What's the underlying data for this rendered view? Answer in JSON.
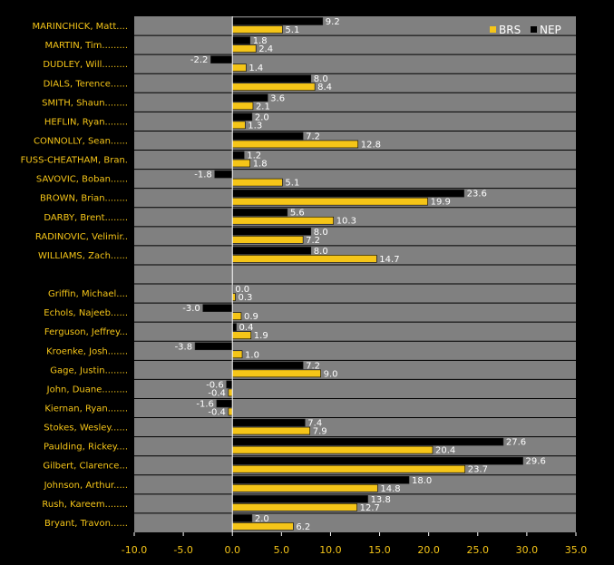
{
  "chart_data": {
    "type": "bar",
    "orientation": "horizontal",
    "categories": [
      "MARINCHICK, Matt....",
      "MARTIN, Tim.........",
      "DUDLEY, Will.........",
      "DIALS, Terence......",
      "SMITH, Shaun........",
      "HEFLIN, Ryan........",
      "CONNOLLY, Sean......",
      "FUSS-CHEATHAM, Bran.",
      "SAVOVIC, Boban......",
      "BROWN, Brian........",
      "DARBY, Brent........",
      "RADINOVIC, Velimir..",
      "WILLIAMS, Zach......",
      "",
      "Griffin, Michael....",
      "Echols, Najeeb......",
      "Ferguson, Jeffrey...",
      "Kroenke, Josh.......",
      "Gage, Justin........",
      "John, Duane.........",
      "Kiernan, Ryan.......",
      "Stokes, Wesley......",
      "Paulding, Rickey....",
      "Gilbert, Clarence...",
      "Johnson, Arthur.....",
      "Rush, Kareem........",
      "Bryant, Travon......"
    ],
    "series": [
      {
        "name": "NEP",
        "color": "#000000",
        "values": [
          9.2,
          1.8,
          -2.2,
          8.0,
          3.6,
          2.0,
          7.2,
          1.2,
          -1.8,
          23.6,
          5.6,
          8.0,
          8.0,
          null,
          0.0,
          -3.0,
          0.4,
          -3.8,
          7.2,
          -0.6,
          -1.6,
          7.4,
          27.6,
          29.6,
          18.0,
          13.8,
          2.0
        ],
        "labels": [
          "9.2",
          "1.8",
          "-2.2",
          "8.0",
          "3.6",
          "2.0",
          "7.2",
          "1.2",
          "-1.8",
          "23.6",
          "5.6",
          "8.0",
          "8.0",
          "",
          "0.0",
          "-3.0",
          "0.4",
          "-3.8",
          "7.2",
          "-0.6",
          "-1.6",
          "7.4",
          "27.6",
          "29.6",
          "18.0",
          "13.8",
          "2.0"
        ]
      },
      {
        "name": "BRS",
        "color": "#F5C518",
        "values": [
          5.1,
          2.4,
          1.4,
          8.4,
          2.1,
          1.3,
          12.8,
          1.8,
          5.1,
          19.9,
          10.3,
          7.2,
          14.7,
          null,
          0.3,
          0.9,
          1.9,
          1.0,
          9.0,
          -0.4,
          -0.4,
          7.9,
          20.4,
          23.7,
          14.8,
          12.7,
          6.2
        ],
        "labels": [
          "5.1",
          "2.4",
          "1.4",
          "8.4",
          "2.1",
          "1.3",
          "12.8",
          "1.8",
          "5.1",
          "19.9",
          "10.3",
          "7.2",
          "14.7",
          "",
          "0.3",
          "0.9",
          "1.9",
          "1.0",
          "9.0",
          "-0.4",
          "-0.4",
          "7.9",
          "20.4",
          "23.7",
          "14.8",
          "12.7",
          "6.2"
        ]
      }
    ],
    "xlim": [
      -10,
      35
    ],
    "xticks": [
      "-10.0",
      "-5.0",
      "0.0",
      "5.0",
      "10.0",
      "15.0",
      "20.0",
      "25.0",
      "30.0",
      "35.0"
    ],
    "legend": {
      "placement": "top-right",
      "items": [
        "BRS",
        "NEP"
      ]
    },
    "grid": true,
    "colors": {
      "background": "#000000",
      "plot": "#808080",
      "label": "#F5C518",
      "value": "#FFFFFF"
    }
  }
}
